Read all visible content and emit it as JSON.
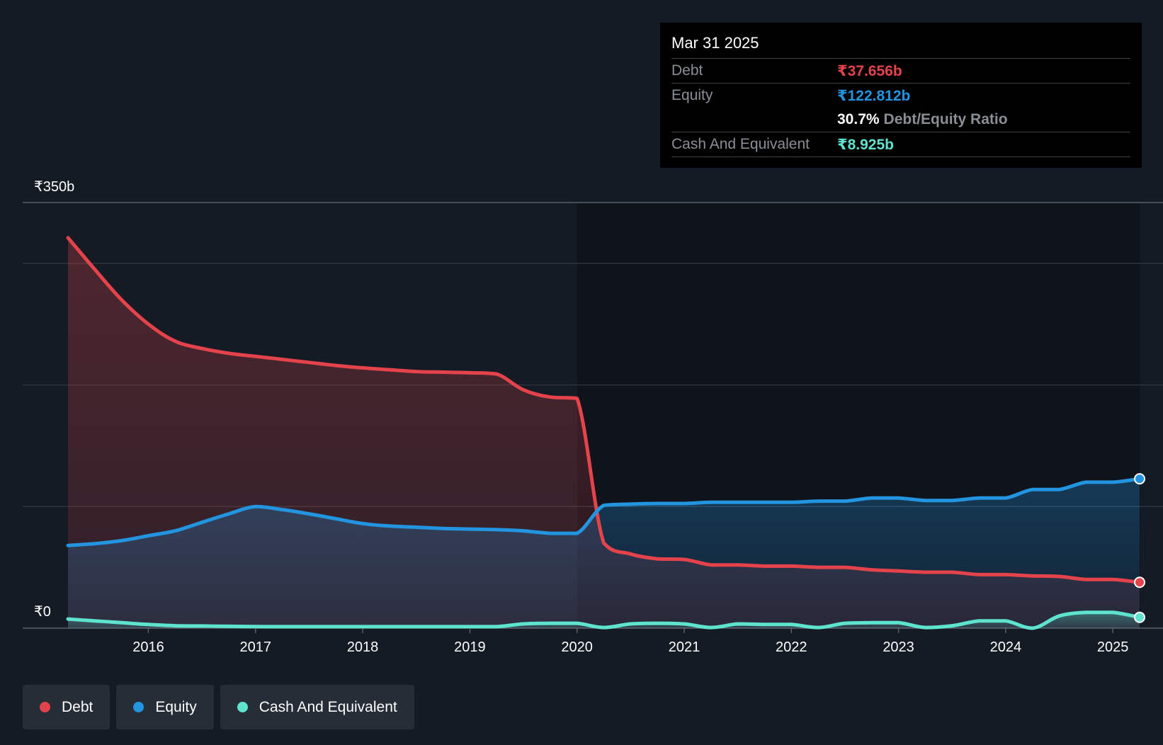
{
  "chart_data": {
    "type": "area",
    "y_axis": {
      "top_label": "₹350b",
      "bottom_label": "₹0",
      "ylim": [
        0,
        350
      ],
      "unit": "₹b"
    },
    "x_ticks": [
      "2016",
      "2017",
      "2018",
      "2019",
      "2020",
      "2021",
      "2022",
      "2023",
      "2024",
      "2025"
    ],
    "x_range": [
      2015.25,
      2025.25
    ],
    "grid": true,
    "series": [
      {
        "name": "Debt",
        "color": "#e5434b",
        "points": [
          [
            2015.25,
            321
          ],
          [
            2015.5,
            295
          ],
          [
            2015.75,
            270
          ],
          [
            2016.0,
            250
          ],
          [
            2016.25,
            236
          ],
          [
            2016.5,
            230
          ],
          [
            2016.75,
            226
          ],
          [
            2017.0,
            223.5
          ],
          [
            2017.25,
            221
          ],
          [
            2017.5,
            218.5
          ],
          [
            2017.75,
            216
          ],
          [
            2018.0,
            214
          ],
          [
            2018.25,
            212.5
          ],
          [
            2018.5,
            211
          ],
          [
            2018.75,
            210.5
          ],
          [
            2019.0,
            210
          ],
          [
            2019.25,
            209
          ],
          [
            2019.5,
            196
          ],
          [
            2019.75,
            190
          ],
          [
            2020.0,
            189
          ],
          [
            2020.25,
            70
          ],
          [
            2020.5,
            61
          ],
          [
            2020.75,
            57
          ],
          [
            2021.0,
            56.5
          ],
          [
            2021.25,
            52
          ],
          [
            2021.5,
            52
          ],
          [
            2021.75,
            51
          ],
          [
            2022.0,
            51
          ],
          [
            2022.25,
            50
          ],
          [
            2022.5,
            50
          ],
          [
            2022.75,
            48
          ],
          [
            2023.0,
            47
          ],
          [
            2023.25,
            46
          ],
          [
            2023.5,
            46
          ],
          [
            2023.75,
            44
          ],
          [
            2024.0,
            44
          ],
          [
            2024.25,
            43
          ],
          [
            2024.5,
            42.5
          ],
          [
            2024.75,
            40
          ],
          [
            2025.0,
            40
          ],
          [
            2025.25,
            37.7
          ]
        ]
      },
      {
        "name": "Equity",
        "color": "#2394df",
        "points": [
          [
            2015.25,
            68
          ],
          [
            2015.5,
            69.5
          ],
          [
            2015.75,
            72
          ],
          [
            2016.0,
            76
          ],
          [
            2016.25,
            80
          ],
          [
            2016.5,
            87
          ],
          [
            2016.75,
            94
          ],
          [
            2017.0,
            100
          ],
          [
            2017.25,
            97.5
          ],
          [
            2017.5,
            94
          ],
          [
            2017.75,
            90
          ],
          [
            2018.0,
            86
          ],
          [
            2018.25,
            84
          ],
          [
            2018.5,
            83
          ],
          [
            2018.75,
            82
          ],
          [
            2019.0,
            81.5
          ],
          [
            2019.25,
            81
          ],
          [
            2019.5,
            80
          ],
          [
            2019.75,
            78
          ],
          [
            2020.0,
            78
          ],
          [
            2020.25,
            101
          ],
          [
            2020.5,
            102
          ],
          [
            2020.75,
            102.5
          ],
          [
            2021.0,
            102.5
          ],
          [
            2021.25,
            103.5
          ],
          [
            2021.5,
            103.5
          ],
          [
            2021.75,
            103.5
          ],
          [
            2022.0,
            103.5
          ],
          [
            2022.25,
            104.5
          ],
          [
            2022.5,
            104.5
          ],
          [
            2022.75,
            107
          ],
          [
            2023.0,
            107
          ],
          [
            2023.25,
            105
          ],
          [
            2023.5,
            105
          ],
          [
            2023.75,
            107
          ],
          [
            2024.0,
            107
          ],
          [
            2024.25,
            114
          ],
          [
            2024.5,
            114
          ],
          [
            2024.75,
            120
          ],
          [
            2025.0,
            120
          ],
          [
            2025.25,
            122.8
          ]
        ]
      },
      {
        "name": "Cash And Equivalent",
        "color": "#5ee3cf",
        "points": [
          [
            2015.25,
            7.5
          ],
          [
            2015.5,
            6
          ],
          [
            2015.75,
            4.5
          ],
          [
            2016.0,
            3
          ],
          [
            2016.25,
            2
          ],
          [
            2016.5,
            1.8
          ],
          [
            2016.75,
            1.5
          ],
          [
            2017.0,
            1.3
          ],
          [
            2017.25,
            1.2
          ],
          [
            2017.5,
            1.2
          ],
          [
            2017.75,
            1.2
          ],
          [
            2018.0,
            1.2
          ],
          [
            2018.25,
            1.2
          ],
          [
            2018.5,
            1.2
          ],
          [
            2018.75,
            1.2
          ],
          [
            2019.0,
            1.2
          ],
          [
            2019.25,
            1.2
          ],
          [
            2019.5,
            3.5
          ],
          [
            2019.75,
            4
          ],
          [
            2020.0,
            4
          ],
          [
            2020.25,
            0.5
          ],
          [
            2020.5,
            3.5
          ],
          [
            2020.75,
            4
          ],
          [
            2021.0,
            3.5
          ],
          [
            2021.25,
            0.5
          ],
          [
            2021.5,
            3.5
          ],
          [
            2021.75,
            3
          ],
          [
            2022.0,
            3
          ],
          [
            2022.25,
            0.5
          ],
          [
            2022.5,
            4
          ],
          [
            2022.75,
            4.5
          ],
          [
            2023.0,
            4.5
          ],
          [
            2023.25,
            0.5
          ],
          [
            2023.5,
            2
          ],
          [
            2023.75,
            6
          ],
          [
            2024.0,
            6
          ],
          [
            2024.25,
            0
          ],
          [
            2024.5,
            10
          ],
          [
            2024.75,
            13
          ],
          [
            2025.0,
            13
          ],
          [
            2025.25,
            8.9
          ]
        ]
      }
    ]
  },
  "tooltip": {
    "date": "Mar 31 2025",
    "debt_label": "Debt",
    "debt_value": "₹37.656b",
    "equity_label": "Equity",
    "equity_value": "₹122.812b",
    "ratio_value": "30.7%",
    "ratio_label": "Debt/Equity Ratio",
    "cash_label": "Cash And Equivalent",
    "cash_value": "₹8.925b"
  },
  "legend": [
    {
      "label": "Debt",
      "color": "#e5434b"
    },
    {
      "label": "Equity",
      "color": "#2394df"
    },
    {
      "label": "Cash And Equivalent",
      "color": "#5ee3cf"
    }
  ]
}
